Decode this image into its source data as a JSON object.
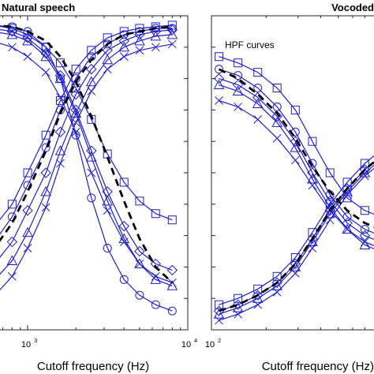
{
  "chart_data": [
    {
      "type": "line",
      "title": "Natural speech",
      "xlabel": "Cutoff frequency (Hz)",
      "xscale": "log",
      "xlim": [
        600,
        10000
      ],
      "ylim": [
        0,
        1
      ],
      "xticks": [
        {
          "base": "10",
          "exp": "3",
          "value": 1000
        },
        {
          "base": "10",
          "exp": "4",
          "value": 10000
        }
      ],
      "grid": false,
      "colors": {
        "series": "#1f1fd0",
        "mean": "#000000"
      },
      "series": [
        {
          "group": "LPF",
          "marker": "square",
          "x": [
            600,
            800,
            1000,
            1300,
            1600,
            2000,
            2500,
            3150,
            4000,
            5000,
            6300,
            8000
          ],
          "y": [
            0.32,
            0.4,
            0.5,
            0.62,
            0.73,
            0.83,
            0.89,
            0.93,
            0.95,
            0.96,
            0.965,
            0.97
          ]
        },
        {
          "group": "LPF",
          "marker": "diamond",
          "x": [
            600,
            800,
            1000,
            1300,
            1600,
            2000,
            2500,
            3150,
            4000,
            5000,
            6300,
            8000
          ],
          "y": [
            0.2,
            0.28,
            0.38,
            0.5,
            0.63,
            0.75,
            0.83,
            0.89,
            0.92,
            0.94,
            0.95,
            0.955
          ]
        },
        {
          "group": "LPF",
          "marker": "triangle",
          "x": [
            600,
            800,
            1000,
            1300,
            1600,
            2000,
            2500,
            3150,
            4000,
            5000,
            6300,
            8000
          ],
          "y": [
            0.15,
            0.22,
            0.31,
            0.44,
            0.57,
            0.69,
            0.79,
            0.86,
            0.9,
            0.92,
            0.935,
            0.94
          ]
        },
        {
          "group": "LPF",
          "marker": "circle",
          "x": [
            600,
            800,
            1000,
            1300,
            1600,
            2000,
            2500,
            3150,
            4000,
            5000,
            6300,
            8000
          ],
          "y": [
            0.27,
            0.36,
            0.46,
            0.58,
            0.7,
            0.8,
            0.87,
            0.91,
            0.94,
            0.95,
            0.96,
            0.96
          ]
        },
        {
          "group": "LPF",
          "marker": "x",
          "x": [
            600,
            800,
            1000,
            1300,
            1600,
            2000,
            2500,
            3150,
            4000,
            5000,
            6300,
            8000
          ],
          "y": [
            0.1,
            0.17,
            0.26,
            0.39,
            0.53,
            0.66,
            0.76,
            0.83,
            0.87,
            0.89,
            0.9,
            0.91
          ]
        },
        {
          "group": "HPF",
          "marker": "square",
          "x": [
            600,
            800,
            1000,
            1300,
            1600,
            2000,
            2500,
            3150,
            4000,
            5000,
            6300,
            8000
          ],
          "y": [
            0.97,
            0.96,
            0.94,
            0.9,
            0.85,
            0.77,
            0.67,
            0.56,
            0.47,
            0.41,
            0.37,
            0.35
          ]
        },
        {
          "group": "HPF",
          "marker": "diamond",
          "x": [
            600,
            800,
            1000,
            1300,
            1600,
            2000,
            2500,
            3150,
            4000,
            5000,
            6300,
            8000
          ],
          "y": [
            0.96,
            0.95,
            0.93,
            0.88,
            0.81,
            0.7,
            0.57,
            0.44,
            0.33,
            0.25,
            0.21,
            0.19
          ]
        },
        {
          "group": "HPF",
          "marker": "triangle",
          "x": [
            600,
            800,
            1000,
            1300,
            1600,
            2000,
            2500,
            3150,
            4000,
            5000,
            6300,
            8000
          ],
          "y": [
            0.95,
            0.94,
            0.92,
            0.87,
            0.8,
            0.69,
            0.55,
            0.41,
            0.29,
            0.21,
            0.16,
            0.14
          ]
        },
        {
          "group": "HPF",
          "marker": "circle",
          "x": [
            600,
            800,
            1000,
            1300,
            1600,
            2000,
            2500,
            3150,
            4000,
            5000,
            6300,
            8000
          ],
          "y": [
            0.97,
            0.965,
            0.95,
            0.9,
            0.8,
            0.62,
            0.42,
            0.26,
            0.16,
            0.11,
            0.08,
            0.06
          ]
        },
        {
          "group": "HPF",
          "marker": "x",
          "x": [
            600,
            800,
            1000,
            1300,
            1600,
            2000,
            2500,
            3150,
            4000,
            5000,
            6300,
            8000
          ],
          "y": [
            0.92,
            0.9,
            0.87,
            0.82,
            0.74,
            0.63,
            0.5,
            0.38,
            0.28,
            0.21,
            0.17,
            0.15
          ]
        },
        {
          "group": "mean",
          "marker": "none",
          "dashed": true,
          "x": [
            600,
            800,
            1000,
            1300,
            1600,
            2000,
            2500,
            3150,
            4000,
            5000,
            6300,
            8000
          ],
          "y": [
            0.25,
            0.34,
            0.44,
            0.57,
            0.69,
            0.79,
            0.86,
            0.91,
            0.94,
            0.95,
            0.96,
            0.965
          ]
        },
        {
          "group": "mean",
          "marker": "none",
          "dashed": true,
          "x": [
            600,
            800,
            1000,
            1300,
            1600,
            2000,
            2500,
            3150,
            4000,
            5000,
            6300,
            8000
          ],
          "y": [
            0.97,
            0.965,
            0.95,
            0.92,
            0.87,
            0.79,
            0.68,
            0.55,
            0.41,
            0.29,
            0.2,
            0.15
          ]
        }
      ]
    },
    {
      "type": "line",
      "title": "Vocoded",
      "xlabel": "Cutoff frequency (Hz)",
      "xscale": "log",
      "xlim": [
        100,
        1000
      ],
      "ylim": [
        0,
        1
      ],
      "xticks": [
        {
          "base": "10",
          "exp": "2",
          "value": 100
        }
      ],
      "grid": false,
      "annotations": [
        {
          "text": "HPF curves"
        }
      ],
      "colors": {
        "series": "#1f1fd0",
        "mean": "#000000"
      },
      "series": [
        {
          "group": "HPF",
          "marker": "square",
          "x": [
            110,
            140,
            180,
            230,
            290,
            360,
            450,
            560,
            700,
            850
          ],
          "y": [
            0.87,
            0.85,
            0.82,
            0.77,
            0.7,
            0.6,
            0.5,
            0.42,
            0.38,
            0.36
          ]
        },
        {
          "group": "HPF",
          "marker": "circle",
          "x": [
            110,
            140,
            180,
            230,
            290,
            360,
            450,
            560,
            700,
            850
          ],
          "y": [
            0.83,
            0.81,
            0.77,
            0.71,
            0.63,
            0.53,
            0.43,
            0.36,
            0.32,
            0.3
          ]
        },
        {
          "group": "HPF",
          "marker": "diamond",
          "x": [
            110,
            140,
            180,
            230,
            290,
            360,
            450,
            560,
            700,
            850
          ],
          "y": [
            0.8,
            0.78,
            0.74,
            0.68,
            0.6,
            0.5,
            0.41,
            0.34,
            0.3,
            0.28
          ]
        },
        {
          "group": "HPF",
          "marker": "triangle",
          "x": [
            110,
            140,
            180,
            230,
            290,
            360,
            450,
            560,
            700,
            850
          ],
          "y": [
            0.78,
            0.76,
            0.72,
            0.66,
            0.58,
            0.48,
            0.39,
            0.32,
            0.27,
            0.25
          ]
        },
        {
          "group": "HPF",
          "marker": "x",
          "x": [
            110,
            140,
            180,
            230,
            290,
            360,
            450,
            560,
            700,
            850
          ],
          "y": [
            0.73,
            0.71,
            0.67,
            0.61,
            0.54,
            0.46,
            0.38,
            0.32,
            0.28,
            0.26
          ]
        },
        {
          "group": "LPF",
          "marker": "square",
          "x": [
            110,
            140,
            180,
            230,
            290,
            360,
            450,
            560,
            700,
            850
          ],
          "y": [
            0.08,
            0.1,
            0.13,
            0.17,
            0.23,
            0.31,
            0.4,
            0.47,
            0.53,
            0.57
          ]
        },
        {
          "group": "LPF",
          "marker": "diamond",
          "x": [
            110,
            140,
            180,
            230,
            290,
            360,
            450,
            560,
            700,
            850
          ],
          "y": [
            0.06,
            0.08,
            0.11,
            0.15,
            0.21,
            0.29,
            0.38,
            0.45,
            0.51,
            0.55
          ]
        },
        {
          "group": "LPF",
          "marker": "triangle",
          "x": [
            110,
            140,
            180,
            230,
            290,
            360,
            450,
            560,
            700,
            850
          ],
          "y": [
            0.05,
            0.07,
            0.1,
            0.14,
            0.2,
            0.28,
            0.37,
            0.44,
            0.5,
            0.54
          ]
        },
        {
          "group": "LPF",
          "marker": "x",
          "x": [
            110,
            140,
            180,
            230,
            290,
            360,
            450,
            560,
            700,
            850
          ],
          "y": [
            0.03,
            0.05,
            0.08,
            0.12,
            0.18,
            0.26,
            0.35,
            0.43,
            0.49,
            0.53
          ]
        },
        {
          "group": "mean",
          "marker": "none",
          "dashed": true,
          "x": [
            110,
            140,
            180,
            230,
            290,
            360,
            450,
            560,
            700,
            850
          ],
          "y": [
            0.83,
            0.8,
            0.75,
            0.69,
            0.61,
            0.52,
            0.44,
            0.38,
            0.34,
            0.32
          ]
        },
        {
          "group": "mean",
          "marker": "none",
          "dashed": true,
          "x": [
            110,
            140,
            180,
            230,
            290,
            360,
            450,
            560,
            700,
            850
          ],
          "y": [
            0.06,
            0.08,
            0.11,
            0.15,
            0.21,
            0.29,
            0.38,
            0.45,
            0.51,
            0.55
          ]
        }
      ]
    }
  ]
}
